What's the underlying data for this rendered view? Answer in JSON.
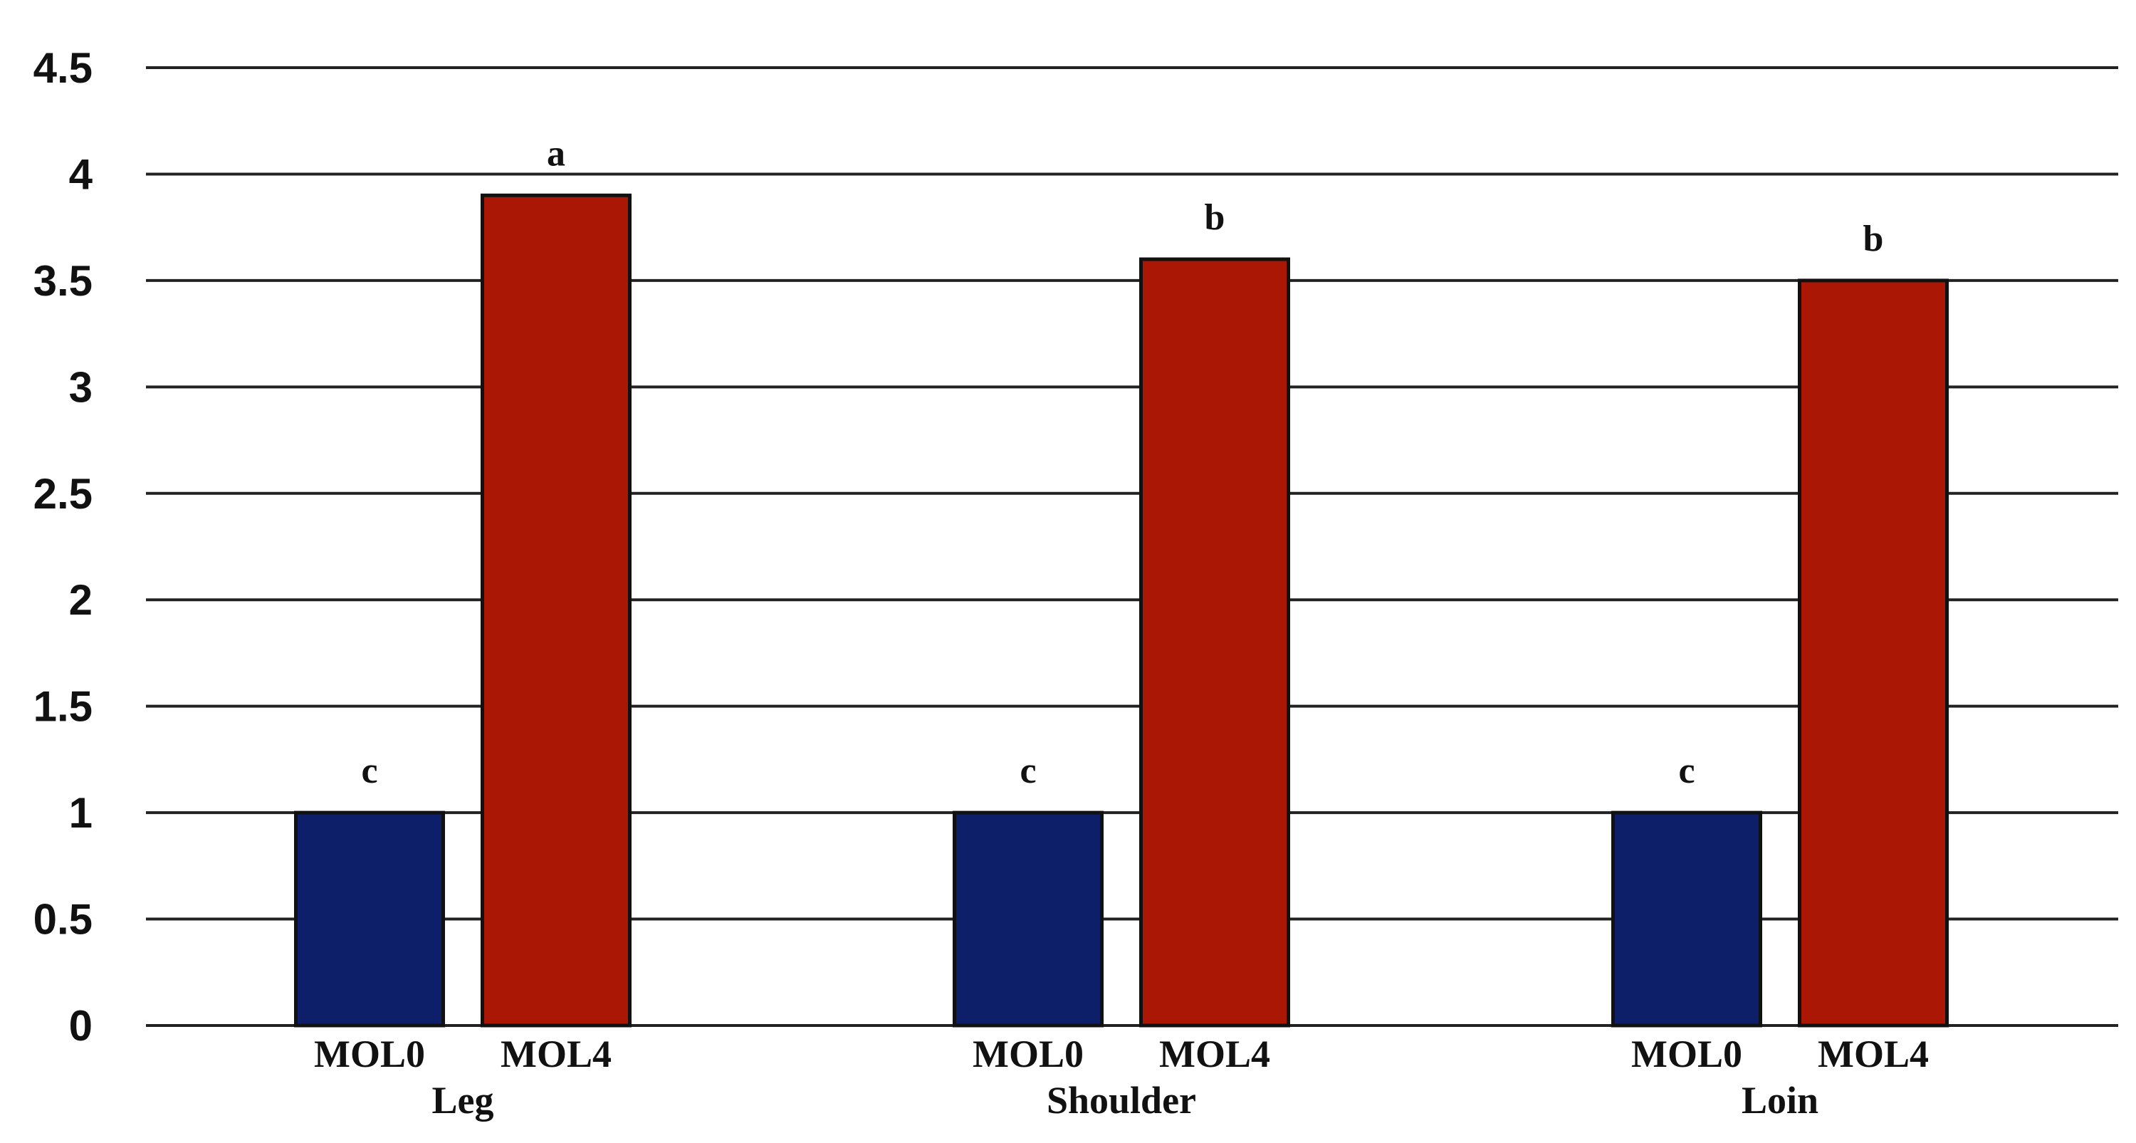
{
  "chart_data": {
    "type": "bar",
    "title": "",
    "xlabel": "",
    "ylabel": "",
    "ylim": [
      0,
      4.5
    ],
    "y_ticks": [
      "0",
      "0.5",
      "1",
      "1.5",
      "2",
      "2.5",
      "3",
      "3.5",
      "4",
      "4.5"
    ],
    "grid": true,
    "legend": "none",
    "groups": [
      {
        "name": "Leg",
        "bars": [
          {
            "series": "MOL0",
            "value": 1.0,
            "label": "c",
            "color": "#0d1f69"
          },
          {
            "series": "MOL4",
            "value": 3.9,
            "label": "a",
            "color": "#ab1705"
          }
        ]
      },
      {
        "name": "Shoulder",
        "bars": [
          {
            "series": "MOL0",
            "value": 1.0,
            "label": "c",
            "color": "#0d1f69"
          },
          {
            "series": "MOL4",
            "value": 3.6,
            "label": "b",
            "color": "#ab1705"
          }
        ]
      },
      {
        "name": "Loin",
        "bars": [
          {
            "series": "MOL0",
            "value": 1.0,
            "label": "c",
            "color": "#0d1f69"
          },
          {
            "series": "MOL4",
            "value": 3.5,
            "label": "b",
            "color": "#ab1705"
          }
        ]
      }
    ]
  }
}
